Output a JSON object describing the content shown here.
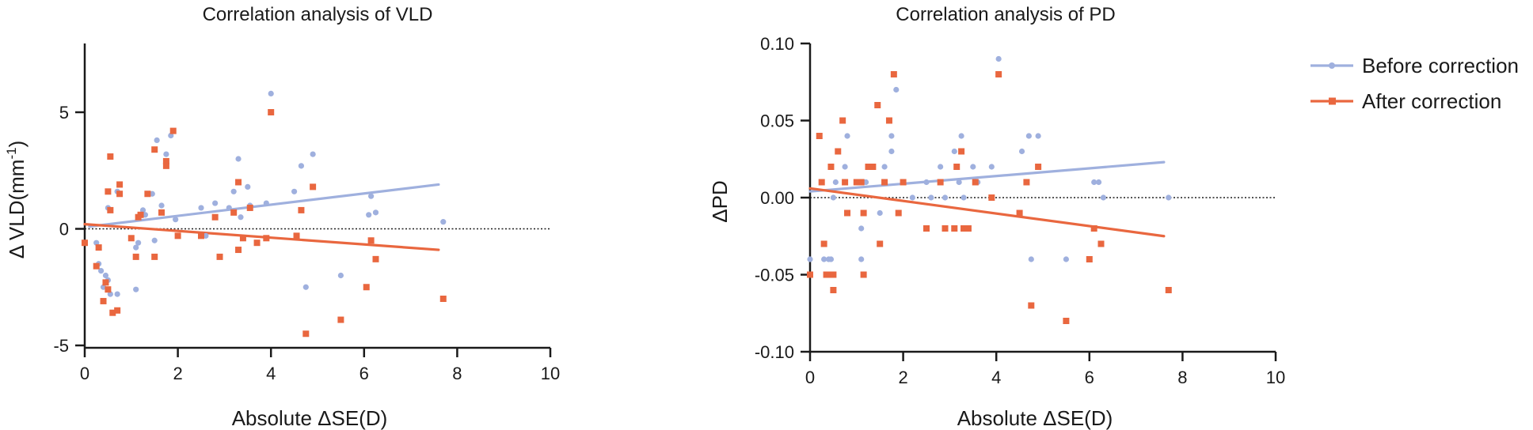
{
  "colors": {
    "before": "#9fb0de",
    "after": "#e9673f",
    "axis": "#1a1a1a"
  },
  "legend": {
    "items": [
      {
        "label": "Before correction",
        "series": "before"
      },
      {
        "label": "After correction",
        "series": "after"
      }
    ],
    "placement": "top-right"
  },
  "chart_data": [
    {
      "type": "scatter",
      "title": "Correlation analysis of VLD",
      "xlabel": "Absolute ΔSE(D)",
      "ylabel_main": "Δ VLD(mm",
      "ylabel_sup": "-1",
      "ylabel_end": ")",
      "xlim": [
        0,
        10
      ],
      "ylim": [
        -5,
        8
      ],
      "xticks": [
        0,
        2,
        4,
        6,
        8,
        10
      ],
      "yticks": [
        -5,
        0,
        5
      ],
      "reference_line": 0,
      "series": [
        {
          "key": "before",
          "marker": "circle",
          "points": [
            [
              0.25,
              -0.6
            ],
            [
              0.3,
              -1.5
            ],
            [
              0.35,
              -1.8
            ],
            [
              0.4,
              -2.5
            ],
            [
              0.45,
              -2.0
            ],
            [
              0.5,
              -2.2
            ],
            [
              0.55,
              -2.8
            ],
            [
              0.7,
              -2.8
            ],
            [
              0.5,
              0.9
            ],
            [
              0.55,
              3.1
            ],
            [
              0.7,
              1.6
            ],
            [
              1.1,
              -2.6
            ],
            [
              1.1,
              -0.8
            ],
            [
              1.15,
              -0.6
            ],
            [
              1.25,
              0.8
            ],
            [
              1.3,
              0.6
            ],
            [
              1.45,
              1.5
            ],
            [
              1.5,
              -0.5
            ],
            [
              1.55,
              3.8
            ],
            [
              1.65,
              1.0
            ],
            [
              1.75,
              3.2
            ],
            [
              1.85,
              4.0
            ],
            [
              1.95,
              0.4
            ],
            [
              2.5,
              0.9
            ],
            [
              2.6,
              -0.3
            ],
            [
              2.8,
              1.1
            ],
            [
              3.1,
              0.9
            ],
            [
              3.2,
              1.6
            ],
            [
              3.3,
              3.0
            ],
            [
              3.35,
              0.5
            ],
            [
              3.5,
              1.8
            ],
            [
              3.55,
              1.0
            ],
            [
              3.9,
              1.1
            ],
            [
              4.0,
              5.8
            ],
            [
              4.5,
              1.6
            ],
            [
              4.65,
              2.7
            ],
            [
              4.75,
              -2.5
            ],
            [
              4.9,
              3.2
            ],
            [
              5.5,
              -2.0
            ],
            [
              6.1,
              0.6
            ],
            [
              6.15,
              1.4
            ],
            [
              6.25,
              0.7
            ],
            [
              7.7,
              0.3
            ]
          ],
          "trend": [
            [
              0.1,
              0.1
            ],
            [
              7.6,
              1.9
            ]
          ]
        },
        {
          "key": "after",
          "marker": "square",
          "points": [
            [
              0.0,
              -0.6
            ],
            [
              0.25,
              -1.6
            ],
            [
              0.3,
              -0.8
            ],
            [
              0.4,
              -3.1
            ],
            [
              0.45,
              -2.3
            ],
            [
              0.5,
              -2.6
            ],
            [
              0.5,
              1.6
            ],
            [
              0.55,
              3.1
            ],
            [
              0.55,
              0.8
            ],
            [
              0.6,
              -3.6
            ],
            [
              0.7,
              -3.5
            ],
            [
              0.75,
              1.9
            ],
            [
              0.75,
              1.5
            ],
            [
              1.0,
              -0.4
            ],
            [
              1.1,
              -1.2
            ],
            [
              1.15,
              0.5
            ],
            [
              1.2,
              0.6
            ],
            [
              1.35,
              1.5
            ],
            [
              1.5,
              3.4
            ],
            [
              1.5,
              -1.2
            ],
            [
              1.65,
              0.7
            ],
            [
              1.75,
              2.7
            ],
            [
              1.75,
              2.9
            ],
            [
              1.9,
              4.2
            ],
            [
              2.0,
              -0.3
            ],
            [
              2.5,
              -0.3
            ],
            [
              2.8,
              0.5
            ],
            [
              2.9,
              -1.2
            ],
            [
              3.2,
              0.7
            ],
            [
              3.3,
              2.0
            ],
            [
              3.3,
              -0.9
            ],
            [
              3.4,
              -0.4
            ],
            [
              3.55,
              0.9
            ],
            [
              3.7,
              -0.6
            ],
            [
              3.9,
              -0.4
            ],
            [
              4.0,
              5.0
            ],
            [
              4.55,
              -0.3
            ],
            [
              4.65,
              0.8
            ],
            [
              4.75,
              -4.5
            ],
            [
              4.9,
              1.8
            ],
            [
              5.5,
              -3.9
            ],
            [
              6.05,
              -2.5
            ],
            [
              6.15,
              -0.5
            ],
            [
              6.25,
              -1.3
            ],
            [
              7.7,
              -3.0
            ]
          ],
          "trend": [
            [
              0.0,
              0.2
            ],
            [
              7.6,
              -0.9
            ]
          ]
        }
      ]
    },
    {
      "type": "scatter",
      "title": "Correlation analysis of PD",
      "xlabel": "Absolute ΔSE(D)",
      "ylabel_main": "ΔPD",
      "ylabel_sup": "",
      "ylabel_end": "",
      "xlim": [
        0,
        10
      ],
      "ylim": [
        -0.1,
        0.1
      ],
      "xticks": [
        0,
        2,
        4,
        6,
        8,
        10
      ],
      "yticks": [
        -0.1,
        -0.05,
        0.0,
        0.05,
        0.1
      ],
      "yticklabels": [
        "-0.10",
        "-0.05",
        "0.00",
        "0.05",
        "0.10"
      ],
      "reference_line": 0,
      "series": [
        {
          "key": "before",
          "marker": "circle",
          "points": [
            [
              0.0,
              -0.04
            ],
            [
              0.3,
              -0.04
            ],
            [
              0.4,
              -0.04
            ],
            [
              0.45,
              -0.04
            ],
            [
              0.5,
              0.0
            ],
            [
              0.55,
              0.01
            ],
            [
              0.6,
              0.03
            ],
            [
              0.75,
              0.02
            ],
            [
              0.8,
              0.04
            ],
            [
              1.1,
              -0.02
            ],
            [
              1.1,
              -0.04
            ],
            [
              1.15,
              0.01
            ],
            [
              1.2,
              0.01
            ],
            [
              1.5,
              -0.01
            ],
            [
              1.6,
              0.02
            ],
            [
              1.75,
              0.03
            ],
            [
              1.75,
              0.04
            ],
            [
              1.85,
              0.07
            ],
            [
              2.0,
              0.01
            ],
            [
              2.2,
              0.0
            ],
            [
              2.5,
              0.01
            ],
            [
              2.6,
              0.0
            ],
            [
              2.8,
              0.02
            ],
            [
              2.9,
              0.0
            ],
            [
              3.1,
              0.03
            ],
            [
              3.2,
              0.01
            ],
            [
              3.25,
              0.04
            ],
            [
              3.3,
              0.0
            ],
            [
              3.5,
              0.02
            ],
            [
              3.6,
              0.01
            ],
            [
              3.9,
              0.02
            ],
            [
              4.05,
              0.09
            ],
            [
              4.55,
              0.03
            ],
            [
              4.7,
              0.04
            ],
            [
              4.75,
              -0.04
            ],
            [
              4.9,
              0.04
            ],
            [
              5.5,
              -0.04
            ],
            [
              6.1,
              0.01
            ],
            [
              6.2,
              0.01
            ],
            [
              6.3,
              0.0
            ],
            [
              7.7,
              0.0
            ]
          ],
          "trend": [
            [
              0.0,
              0.004
            ],
            [
              7.6,
              0.023
            ]
          ]
        },
        {
          "key": "after",
          "marker": "square",
          "points": [
            [
              0.0,
              -0.05
            ],
            [
              0.2,
              0.04
            ],
            [
              0.25,
              0.01
            ],
            [
              0.3,
              -0.03
            ],
            [
              0.35,
              -0.05
            ],
            [
              0.4,
              -0.05
            ],
            [
              0.45,
              0.02
            ],
            [
              0.5,
              -0.06
            ],
            [
              0.5,
              -0.05
            ],
            [
              0.6,
              0.03
            ],
            [
              0.7,
              0.05
            ],
            [
              0.75,
              0.01
            ],
            [
              0.8,
              -0.01
            ],
            [
              1.0,
              0.01
            ],
            [
              1.1,
              0.01
            ],
            [
              1.15,
              -0.01
            ],
            [
              1.15,
              -0.05
            ],
            [
              1.25,
              0.02
            ],
            [
              1.35,
              0.02
            ],
            [
              1.45,
              0.06
            ],
            [
              1.5,
              -0.03
            ],
            [
              1.6,
              0.01
            ],
            [
              1.7,
              0.05
            ],
            [
              1.8,
              0.08
            ],
            [
              1.9,
              -0.01
            ],
            [
              2.0,
              0.01
            ],
            [
              2.5,
              -0.02
            ],
            [
              2.8,
              0.01
            ],
            [
              2.9,
              -0.02
            ],
            [
              3.1,
              -0.02
            ],
            [
              3.15,
              0.02
            ],
            [
              3.25,
              0.03
            ],
            [
              3.3,
              -0.02
            ],
            [
              3.4,
              -0.02
            ],
            [
              3.55,
              0.01
            ],
            [
              3.9,
              0.0
            ],
            [
              4.05,
              0.08
            ],
            [
              4.5,
              -0.01
            ],
            [
              4.65,
              0.01
            ],
            [
              4.75,
              -0.07
            ],
            [
              4.9,
              0.02
            ],
            [
              5.5,
              -0.08
            ],
            [
              6.0,
              -0.04
            ],
            [
              6.1,
              -0.02
            ],
            [
              6.25,
              -0.03
            ],
            [
              7.7,
              -0.06
            ]
          ],
          "trend": [
            [
              0.0,
              0.006
            ],
            [
              7.6,
              -0.025
            ]
          ]
        }
      ]
    }
  ]
}
